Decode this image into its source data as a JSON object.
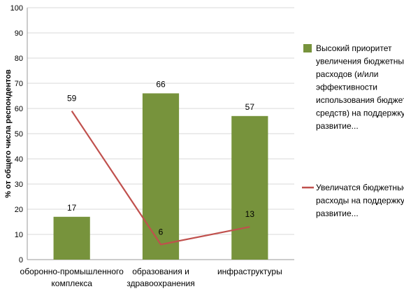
{
  "chart_data": {
    "type": "bar",
    "categories": [
      [
        "оборонно-промышленного",
        "комплекса"
      ],
      [
        "образования и",
        "здравоохранения"
      ],
      [
        "инфраструктуры"
      ]
    ],
    "ylabel": "% от общего числа респондентов",
    "ylim": [
      0,
      100
    ],
    "yticks": [
      0,
      10,
      20,
      30,
      40,
      50,
      60,
      70,
      80,
      90,
      100
    ],
    "grid": "horizontal",
    "legend_position": "right",
    "series": [
      {
        "name": "Высокий приоритет увеличения бюджетных расходов (и/или эффективности использования бюджетных средств) на поддержку и развитие...",
        "legend_lines": [
          "Высокий приоритет",
          "увеличения бюджетных",
          "расходов (и/или",
          "эффективности",
          "использования бюджетных",
          "средств) на поддержку и",
          "развитие..."
        ],
        "type": "bar",
        "color": "#77933c",
        "values": [
          17,
          66,
          57
        ]
      },
      {
        "name": "Увеличатся бюджетные расходы на поддержку и развитие...",
        "legend_lines": [
          "Увеличатся бюджетные",
          "расходы на поддержку и",
          "развитие..."
        ],
        "type": "line",
        "color": "#c0504d",
        "values": [
          59,
          6,
          13
        ]
      }
    ]
  }
}
